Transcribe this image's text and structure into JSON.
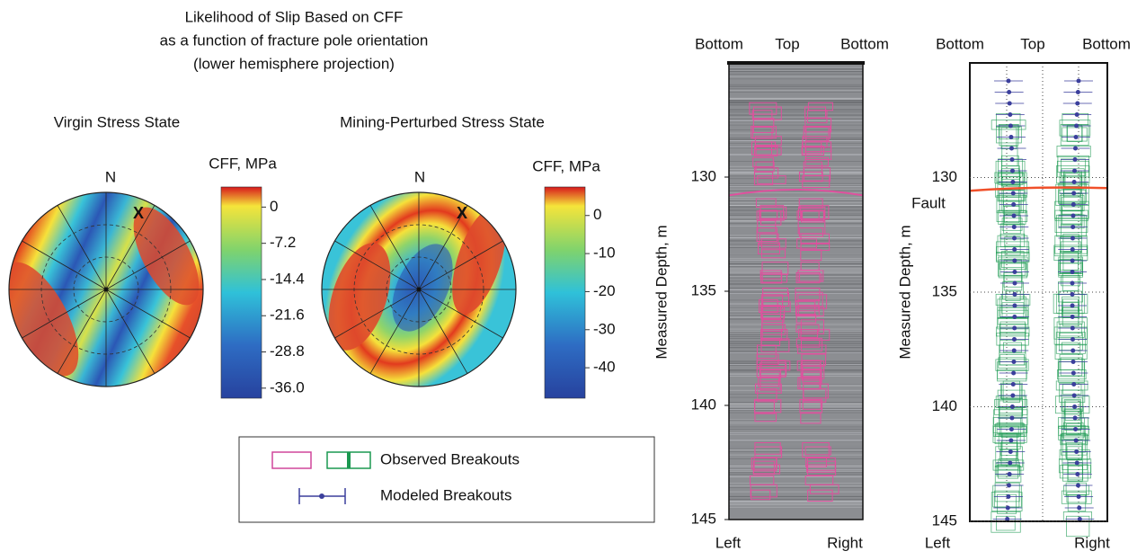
{
  "title": [
    "Likelihood of Slip Based on CFF",
    "as a function of fracture pole orientation",
    "(lower hemisphere projection)"
  ],
  "stereonets": [
    {
      "title": "Virgin Stress State",
      "north": "N",
      "marker": "X",
      "colorbar": {
        "label": "CFF, MPa",
        "lim": [
          4,
          -38
        ],
        "ticks": [
          0,
          -7.2,
          -14.4,
          -21.6,
          -28.8,
          {
            "value": -36,
            "label": "-36.0"
          }
        ]
      }
    },
    {
      "title": "Mining-Perturbed Stress State",
      "north": "N",
      "marker": "X",
      "colorbar": {
        "label": "CFF, MPa",
        "lim": [
          7.5,
          -48
        ],
        "ticks": [
          0,
          -10,
          -20,
          -30,
          -40
        ]
      }
    }
  ],
  "legend": {
    "observed": "Observed Breakouts",
    "modeled": "Modeled Breakouts"
  },
  "image_log": {
    "top_labels": [
      "Bottom",
      "Top",
      "Bottom"
    ],
    "bottom_labels": [
      "Left",
      "Right"
    ],
    "ylabel": "Measured Depth, m",
    "ylim": [
      125,
      145
    ],
    "yticks": [
      130,
      135,
      140,
      145
    ]
  },
  "breakout_log": {
    "top_labels": [
      "Bottom",
      "Top",
      "Bottom"
    ],
    "bottom_labels": [
      "Left",
      "Right"
    ],
    "ylabel": "Measured Depth, m",
    "ylim": [
      125,
      145
    ],
    "yticks": [
      130,
      135,
      140,
      145
    ],
    "annotation": "Fault",
    "fault_depth": 130.5
  }
}
